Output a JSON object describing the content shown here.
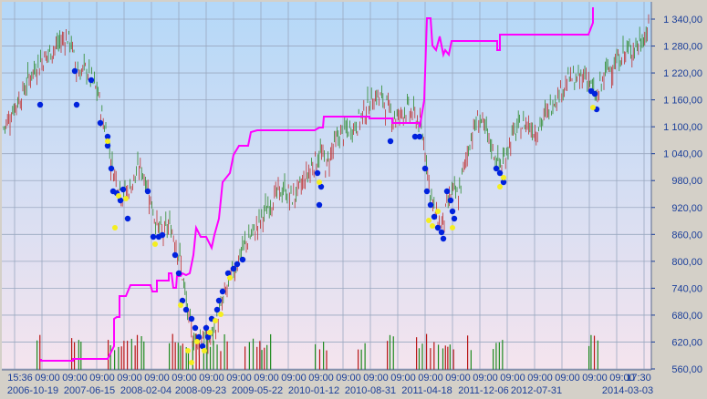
{
  "chart_data": {
    "type": "candlestick",
    "title": "",
    "xlabel": "",
    "ylabel": "",
    "ylim": [
      560,
      1360
    ],
    "y_ticks": [
      "560,00",
      "620,00",
      "680,00",
      "740,00",
      "800,00",
      "860,00",
      "920,00",
      "980,00",
      "1 040,00",
      "1 100,00",
      "1 160,00",
      "1 220,00",
      "1 280,00",
      "1 340,00"
    ],
    "y_tick_values": [
      560,
      620,
      680,
      740,
      800,
      860,
      920,
      980,
      1040,
      1100,
      1160,
      1220,
      1280,
      1340
    ],
    "x_time_labels": [
      "15:36",
      "09:00",
      "09:00",
      "09:00",
      "09:00",
      "09:00",
      "09:00",
      "09:00",
      "09:00",
      "09:00",
      "09:00",
      "09:00",
      "09:00",
      "09:00",
      "09:00",
      "09:00",
      "09:00",
      "09:00",
      "09:00",
      "09:00",
      "09:00",
      "09:00",
      "09:00",
      "17:30"
    ],
    "x_date_labels": [
      "2006-10-19",
      "2007-06-15",
      "2008-02-04",
      "2008-09-23",
      "2009-05-22",
      "2010-01-12",
      "2010-08-31",
      "2011-04-18",
      "2011-12-06",
      "2012-07-31",
      "2014-03-03"
    ],
    "price_path": [
      [
        0,
        1090
      ],
      [
        8,
        1120
      ],
      [
        15,
        1150
      ],
      [
        22,
        1170
      ],
      [
        30,
        1210
      ],
      [
        40,
        1240
      ],
      [
        50,
        1260
      ],
      [
        60,
        1280
      ],
      [
        70,
        1300
      ],
      [
        76,
        1290
      ],
      [
        80,
        1240
      ],
      [
        86,
        1220
      ],
      [
        92,
        1230
      ],
      [
        100,
        1200
      ],
      [
        106,
        1170
      ],
      [
        110,
        1120
      ],
      [
        116,
        1080
      ],
      [
        120,
        1020
      ],
      [
        126,
        980
      ],
      [
        132,
        950
      ],
      [
        140,
        960
      ],
      [
        146,
        990
      ],
      [
        152,
        1010
      ],
      [
        158,
        980
      ],
      [
        164,
        930
      ],
      [
        170,
        880
      ],
      [
        176,
        860
      ],
      [
        184,
        880
      ],
      [
        190,
        850
      ],
      [
        196,
        800
      ],
      [
        200,
        740
      ],
      [
        204,
        680
      ],
      [
        208,
        640
      ],
      [
        214,
        620
      ],
      [
        220,
        640
      ],
      [
        226,
        620
      ],
      [
        232,
        640
      ],
      [
        238,
        680
      ],
      [
        244,
        720
      ],
      [
        250,
        760
      ],
      [
        256,
        790
      ],
      [
        262,
        820
      ],
      [
        270,
        850
      ],
      [
        278,
        870
      ],
      [
        286,
        900
      ],
      [
        294,
        930
      ],
      [
        302,
        950
      ],
      [
        310,
        960
      ],
      [
        318,
        940
      ],
      [
        326,
        960
      ],
      [
        334,
        990
      ],
      [
        342,
        1020
      ],
      [
        350,
        1040
      ],
      [
        356,
        1010
      ],
      [
        362,
        1050
      ],
      [
        370,
        1080
      ],
      [
        378,
        1090
      ],
      [
        386,
        1100
      ],
      [
        394,
        1120
      ],
      [
        402,
        1150
      ],
      [
        410,
        1170
      ],
      [
        418,
        1160
      ],
      [
        426,
        1130
      ],
      [
        434,
        1120
      ],
      [
        442,
        1140
      ],
      [
        450,
        1130
      ],
      [
        458,
        1110
      ],
      [
        464,
        1050
      ],
      [
        470,
        950
      ],
      [
        476,
        900
      ],
      [
        482,
        880
      ],
      [
        488,
        920
      ],
      [
        494,
        960
      ],
      [
        500,
        940
      ],
      [
        506,
        1000
      ],
      [
        512,
        1060
      ],
      [
        518,
        1100
      ],
      [
        524,
        1120
      ],
      [
        530,
        1090
      ],
      [
        536,
        1060
      ],
      [
        542,
        1030
      ],
      [
        548,
        1010
      ],
      [
        554,
        1050
      ],
      [
        560,
        1080
      ],
      [
        568,
        1100
      ],
      [
        576,
        1110
      ],
      [
        584,
        1090
      ],
      [
        592,
        1110
      ],
      [
        600,
        1140
      ],
      [
        608,
        1170
      ],
      [
        616,
        1190
      ],
      [
        624,
        1210
      ],
      [
        632,
        1200
      ],
      [
        640,
        1220
      ],
      [
        646,
        1190
      ],
      [
        652,
        1160
      ],
      [
        658,
        1200
      ],
      [
        664,
        1230
      ],
      [
        672,
        1240
      ],
      [
        680,
        1260
      ],
      [
        688,
        1270
      ],
      [
        696,
        1280
      ],
      [
        704,
        1300
      ],
      [
        710,
        1320
      ],
      [
        714,
        1340
      ]
    ],
    "magenta_series": [
      [
        45,
        1
      ],
      [
        45,
        0.9
      ],
      [
        80,
        0.9
      ],
      [
        80,
        0.8
      ],
      [
        118,
        0.8
      ],
      [
        118,
        0.7
      ],
      [
        128,
        0.7
      ],
      [
        128,
        0.6
      ],
      [
        140,
        0.6
      ],
      [
        140,
        0.5
      ],
      [
        175,
        0.5
      ],
      [
        175,
        0.45
      ],
      [
        185,
        0.45
      ],
      [
        190,
        0.4
      ],
      [
        200,
        0.38
      ],
      [
        205,
        0.3
      ],
      [
        215,
        0.28
      ],
      [
        222,
        0.25
      ],
      [
        228,
        0.22
      ],
      [
        234,
        0.2
      ],
      [
        240,
        0.15
      ],
      [
        245,
        0.1
      ],
      [
        250,
        0.05
      ],
      [
        258,
        0.0
      ]
    ],
    "magenta_steps_px": true,
    "signal_points_note": ""
  }
}
